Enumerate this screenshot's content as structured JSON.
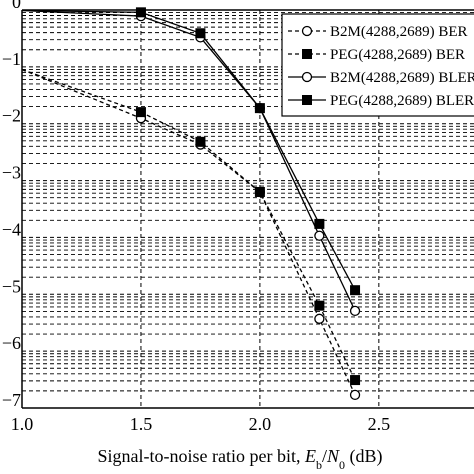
{
  "chart_data": {
    "type": "line",
    "xlabel": {
      "prefix": "Signal-to-noise ratio per bit, ",
      "e": "E",
      "e_sub": "b",
      "slash": "/",
      "n": "N",
      "n_sub": "0",
      "suffix": " (dB)"
    },
    "xlim": [
      1.0,
      2.9
    ],
    "ylim_exponent": [
      -7,
      0
    ],
    "y_scale": "log",
    "grid": "dashed, both axes",
    "x_ticks": [
      {
        "value": 1.0,
        "label": "1.0"
      },
      {
        "value": 1.5,
        "label": "1.5"
      },
      {
        "value": 2.0,
        "label": "2.0"
      },
      {
        "value": 2.5,
        "label": "2.5"
      }
    ],
    "y_ticks": [
      {
        "exp": 0,
        "label": "0"
      },
      {
        "exp": -1,
        "label": "−1"
      },
      {
        "exp": -2,
        "label": "−2"
      },
      {
        "exp": -3,
        "label": "−3"
      },
      {
        "exp": -4,
        "label": "−4"
      },
      {
        "exp": -5,
        "label": "−5"
      },
      {
        "exp": -6,
        "label": "−6"
      },
      {
        "exp": -7,
        "label": "−7"
      }
    ],
    "legend_position": "top-right",
    "series": [
      {
        "name": "B2M(4288,2689) BER",
        "line": "dashed",
        "marker": "open-circle",
        "x": [
          1.0,
          1.5,
          1.75,
          2.0,
          2.25,
          2.4
        ],
        "y": [
          0.09,
          0.0125,
          0.0043,
          0.00063,
          3.7e-06,
          1.7e-07
        ]
      },
      {
        "name": "PEG(4288,2689) BER",
        "line": "dashed",
        "marker": "filled-square",
        "x": [
          1.0,
          1.5,
          1.75,
          2.0,
          2.25,
          2.4
        ],
        "y": [
          0.09,
          0.016,
          0.0048,
          0.00063,
          6.3e-06,
          3.1e-07
        ]
      },
      {
        "name": "B2M(4288,2689) BLER",
        "line": "solid",
        "marker": "open-circle",
        "x": [
          1.0,
          1.5,
          1.75,
          2.0,
          2.25,
          2.4
        ],
        "y": [
          0.98,
          0.78,
          0.33,
          0.0188,
          0.000107,
          5.1e-06
        ]
      },
      {
        "name": "PEG(4288,2689) BLER",
        "line": "solid",
        "marker": "filled-square",
        "x": [
          1.0,
          1.5,
          1.75,
          2.0,
          2.25,
          2.4
        ],
        "y": [
          0.98,
          0.91,
          0.39,
          0.0188,
          0.000173,
          1.18e-05
        ]
      }
    ]
  }
}
